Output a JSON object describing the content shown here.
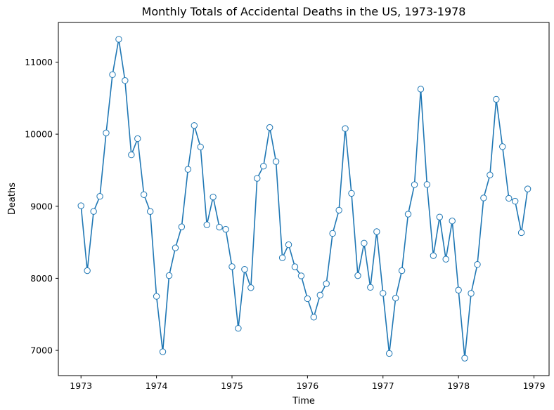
{
  "chart_data": {
    "type": "line",
    "title": "Monthly Totals of Accidental Deaths in the US, 1973-1978",
    "xlabel": "Time",
    "ylabel": "Deaths",
    "xlim": [
      1972.7,
      1979.2
    ],
    "ylim": [
      6650,
      11550
    ],
    "xticks": [
      1973,
      1974,
      1975,
      1976,
      1977,
      1978,
      1979
    ],
    "yticks": [
      7000,
      8000,
      9000,
      10000,
      11000
    ],
    "grid": false,
    "series": [
      {
        "color": "#1f77b4",
        "marker": "circle-open",
        "x": [
          1973.0,
          1973.083,
          1973.167,
          1973.25,
          1973.333,
          1973.417,
          1973.5,
          1973.583,
          1973.667,
          1973.75,
          1973.833,
          1973.917,
          1974.0,
          1974.083,
          1974.167,
          1974.25,
          1974.333,
          1974.417,
          1974.5,
          1974.583,
          1974.667,
          1974.75,
          1974.833,
          1974.917,
          1975.0,
          1975.083,
          1975.167,
          1975.25,
          1975.333,
          1975.417,
          1975.5,
          1975.583,
          1975.667,
          1975.75,
          1975.833,
          1975.917,
          1976.0,
          1976.083,
          1976.167,
          1976.25,
          1976.333,
          1976.417,
          1976.5,
          1976.583,
          1976.667,
          1976.75,
          1976.833,
          1976.917,
          1977.0,
          1977.083,
          1977.167,
          1977.25,
          1977.333,
          1977.417,
          1977.5,
          1977.583,
          1977.667,
          1977.75,
          1977.833,
          1977.917,
          1978.0,
          1978.083,
          1978.167,
          1978.25,
          1978.333,
          1978.417,
          1978.5,
          1978.583,
          1978.667,
          1978.75,
          1978.833,
          1978.917
        ],
        "values": [
          9007,
          8106,
          8928,
          9137,
          10017,
          10826,
          11317,
          10744,
          9713,
          9938,
          9161,
          8927,
          7750,
          6981,
          8038,
          8422,
          8714,
          9512,
          10120,
          9823,
          8743,
          9129,
          8710,
          8680,
          8162,
          7306,
          8124,
          7870,
          9387,
          9556,
          10093,
          9620,
          8285,
          8466,
          8160,
          8034,
          7717,
          7461,
          7767,
          7925,
          8623,
          8945,
          10078,
          9179,
          8037,
          8488,
          7874,
          8647,
          7792,
          6957,
          7726,
          8106,
          8890,
          9299,
          10625,
          9302,
          8314,
          8850,
          8265,
          8796,
          7836,
          6892,
          7791,
          8192,
          9115,
          9434,
          10484,
          9827,
          9110,
          9070,
          8633,
          9240
        ]
      }
    ]
  }
}
